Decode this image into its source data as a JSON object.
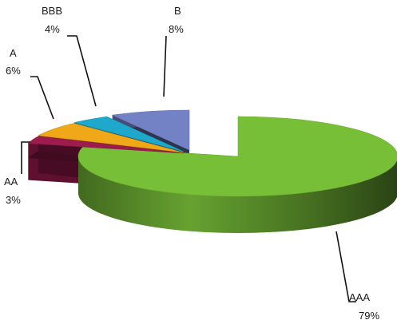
{
  "chart_data": {
    "type": "pie",
    "style": "3d-exploded",
    "title": "",
    "slices": [
      {
        "category": "AAA",
        "value": 79,
        "label": "79%",
        "color": "#78bf38"
      },
      {
        "category": "AA",
        "value": 3,
        "label": "3%",
        "color": "#9e1b4e"
      },
      {
        "category": "A",
        "value": 6,
        "label": "6%",
        "color": "#f0a818"
      },
      {
        "category": "BBB",
        "value": 4,
        "label": "4%",
        "color": "#1ea8cc"
      },
      {
        "category": "B",
        "value": 8,
        "label": "8%",
        "color": "#7282c4"
      }
    ],
    "legend": "none",
    "data_labels": "outside-with-leader-lines"
  }
}
